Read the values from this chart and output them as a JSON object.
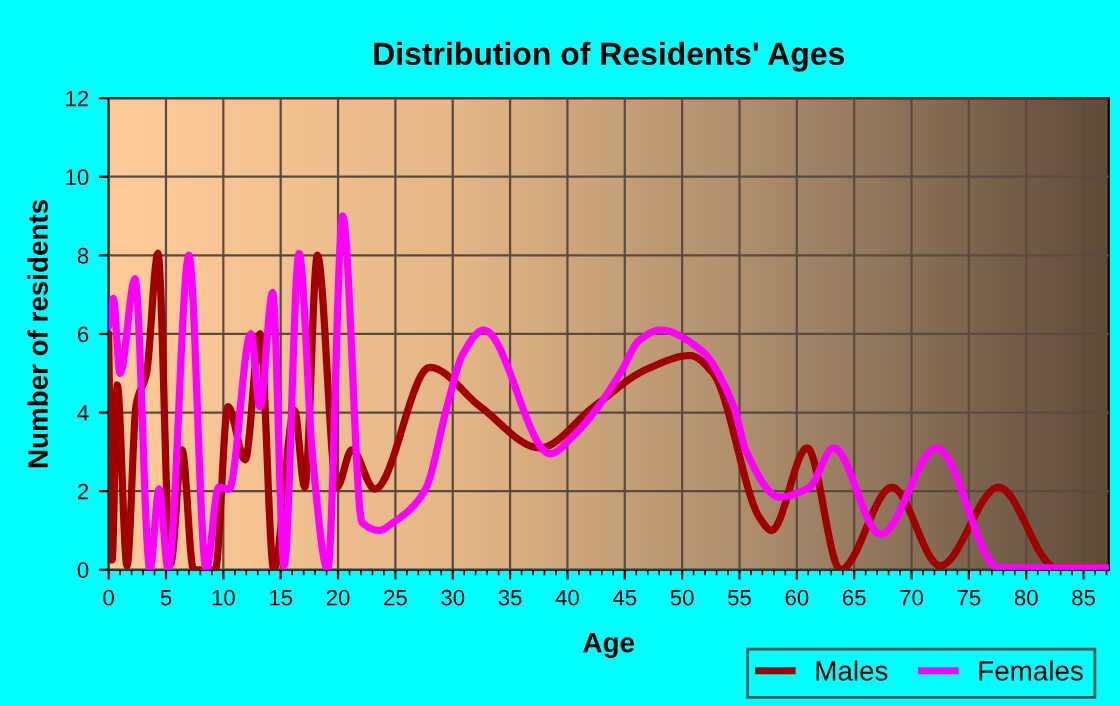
{
  "chart_data": {
    "type": "line",
    "title": "Distribution of Residents' Ages",
    "xlabel": "Age",
    "ylabel": "Number of residents",
    "xlim": [
      0,
      87.2
    ],
    "ylim": [
      0,
      12
    ],
    "xticks": [
      0,
      5,
      10,
      15,
      20,
      25,
      30,
      35,
      40,
      45,
      50,
      55,
      60,
      65,
      70,
      75,
      80,
      85
    ],
    "yticks": [
      0,
      2,
      4,
      6,
      8,
      10,
      12
    ],
    "grid": true,
    "legend": "bottom right",
    "line_style": "solid",
    "marker": "none",
    "series": [
      {
        "name": "Males",
        "color": "#a00000",
        "x": [
          0,
          0.3,
          0.75,
          1.6,
          2.4,
          3.3,
          4.3,
          5.4,
          6.4,
          7.4,
          9.3,
          10.4,
          11.9,
          13.2,
          14.4,
          16.2,
          17.1,
          18.2,
          19.9,
          21.2,
          23.2,
          28.0,
          32.4,
          37.6,
          42.3,
          46.9,
          50.7,
          52.7,
          56.8,
          57.8,
          60.9,
          63.8,
          68.3,
          72.5,
          77.6,
          82.6,
          87.1
        ],
        "values": [
          6.0,
          0.25,
          4.7,
          0.1,
          4.2,
          5.0,
          8.05,
          0.15,
          3.05,
          0,
          0,
          4.15,
          2.8,
          6.0,
          0,
          4.05,
          2.1,
          8.0,
          2.1,
          3.05,
          2.05,
          5.15,
          4.15,
          3.1,
          4.15,
          5.1,
          5.45,
          5.0,
          1.3,
          1.0,
          3.1,
          0,
          2.1,
          0.1,
          2.1,
          0.05,
          0.05
        ]
      },
      {
        "name": "Females",
        "color": "#ff00ff",
        "x": [
          0,
          0.4,
          1.0,
          2.3,
          3.6,
          4.4,
          5.2,
          7.0,
          8.5,
          9.6,
          10.5,
          12.4,
          13.2,
          14.3,
          15.3,
          16.6,
          17.8,
          19.1,
          20.4,
          22.1,
          23.6,
          24.8,
          26.5,
          27.7,
          29.5,
          30.9,
          32.7,
          38.5,
          40.5,
          42.3,
          44.6,
          46.3,
          48.1,
          51.6,
          54.5,
          55.6,
          58.5,
          61.1,
          63.2,
          67.3,
          72.2,
          77.6,
          87.1
        ],
        "values": [
          6.2,
          6.9,
          5.0,
          7.4,
          0,
          2.05,
          0,
          8.0,
          0,
          2.1,
          2.05,
          6.0,
          4.15,
          7.05,
          0.1,
          8.05,
          2.8,
          0,
          9.0,
          1.2,
          1.0,
          1.2,
          1.6,
          2.1,
          4.15,
          5.5,
          6.1,
          2.95,
          3.4,
          4.0,
          5.0,
          5.85,
          6.1,
          5.6,
          4.15,
          3.0,
          1.85,
          2.1,
          3.1,
          0.9,
          3.1,
          0.05,
          0.05
        ]
      }
    ]
  }
}
